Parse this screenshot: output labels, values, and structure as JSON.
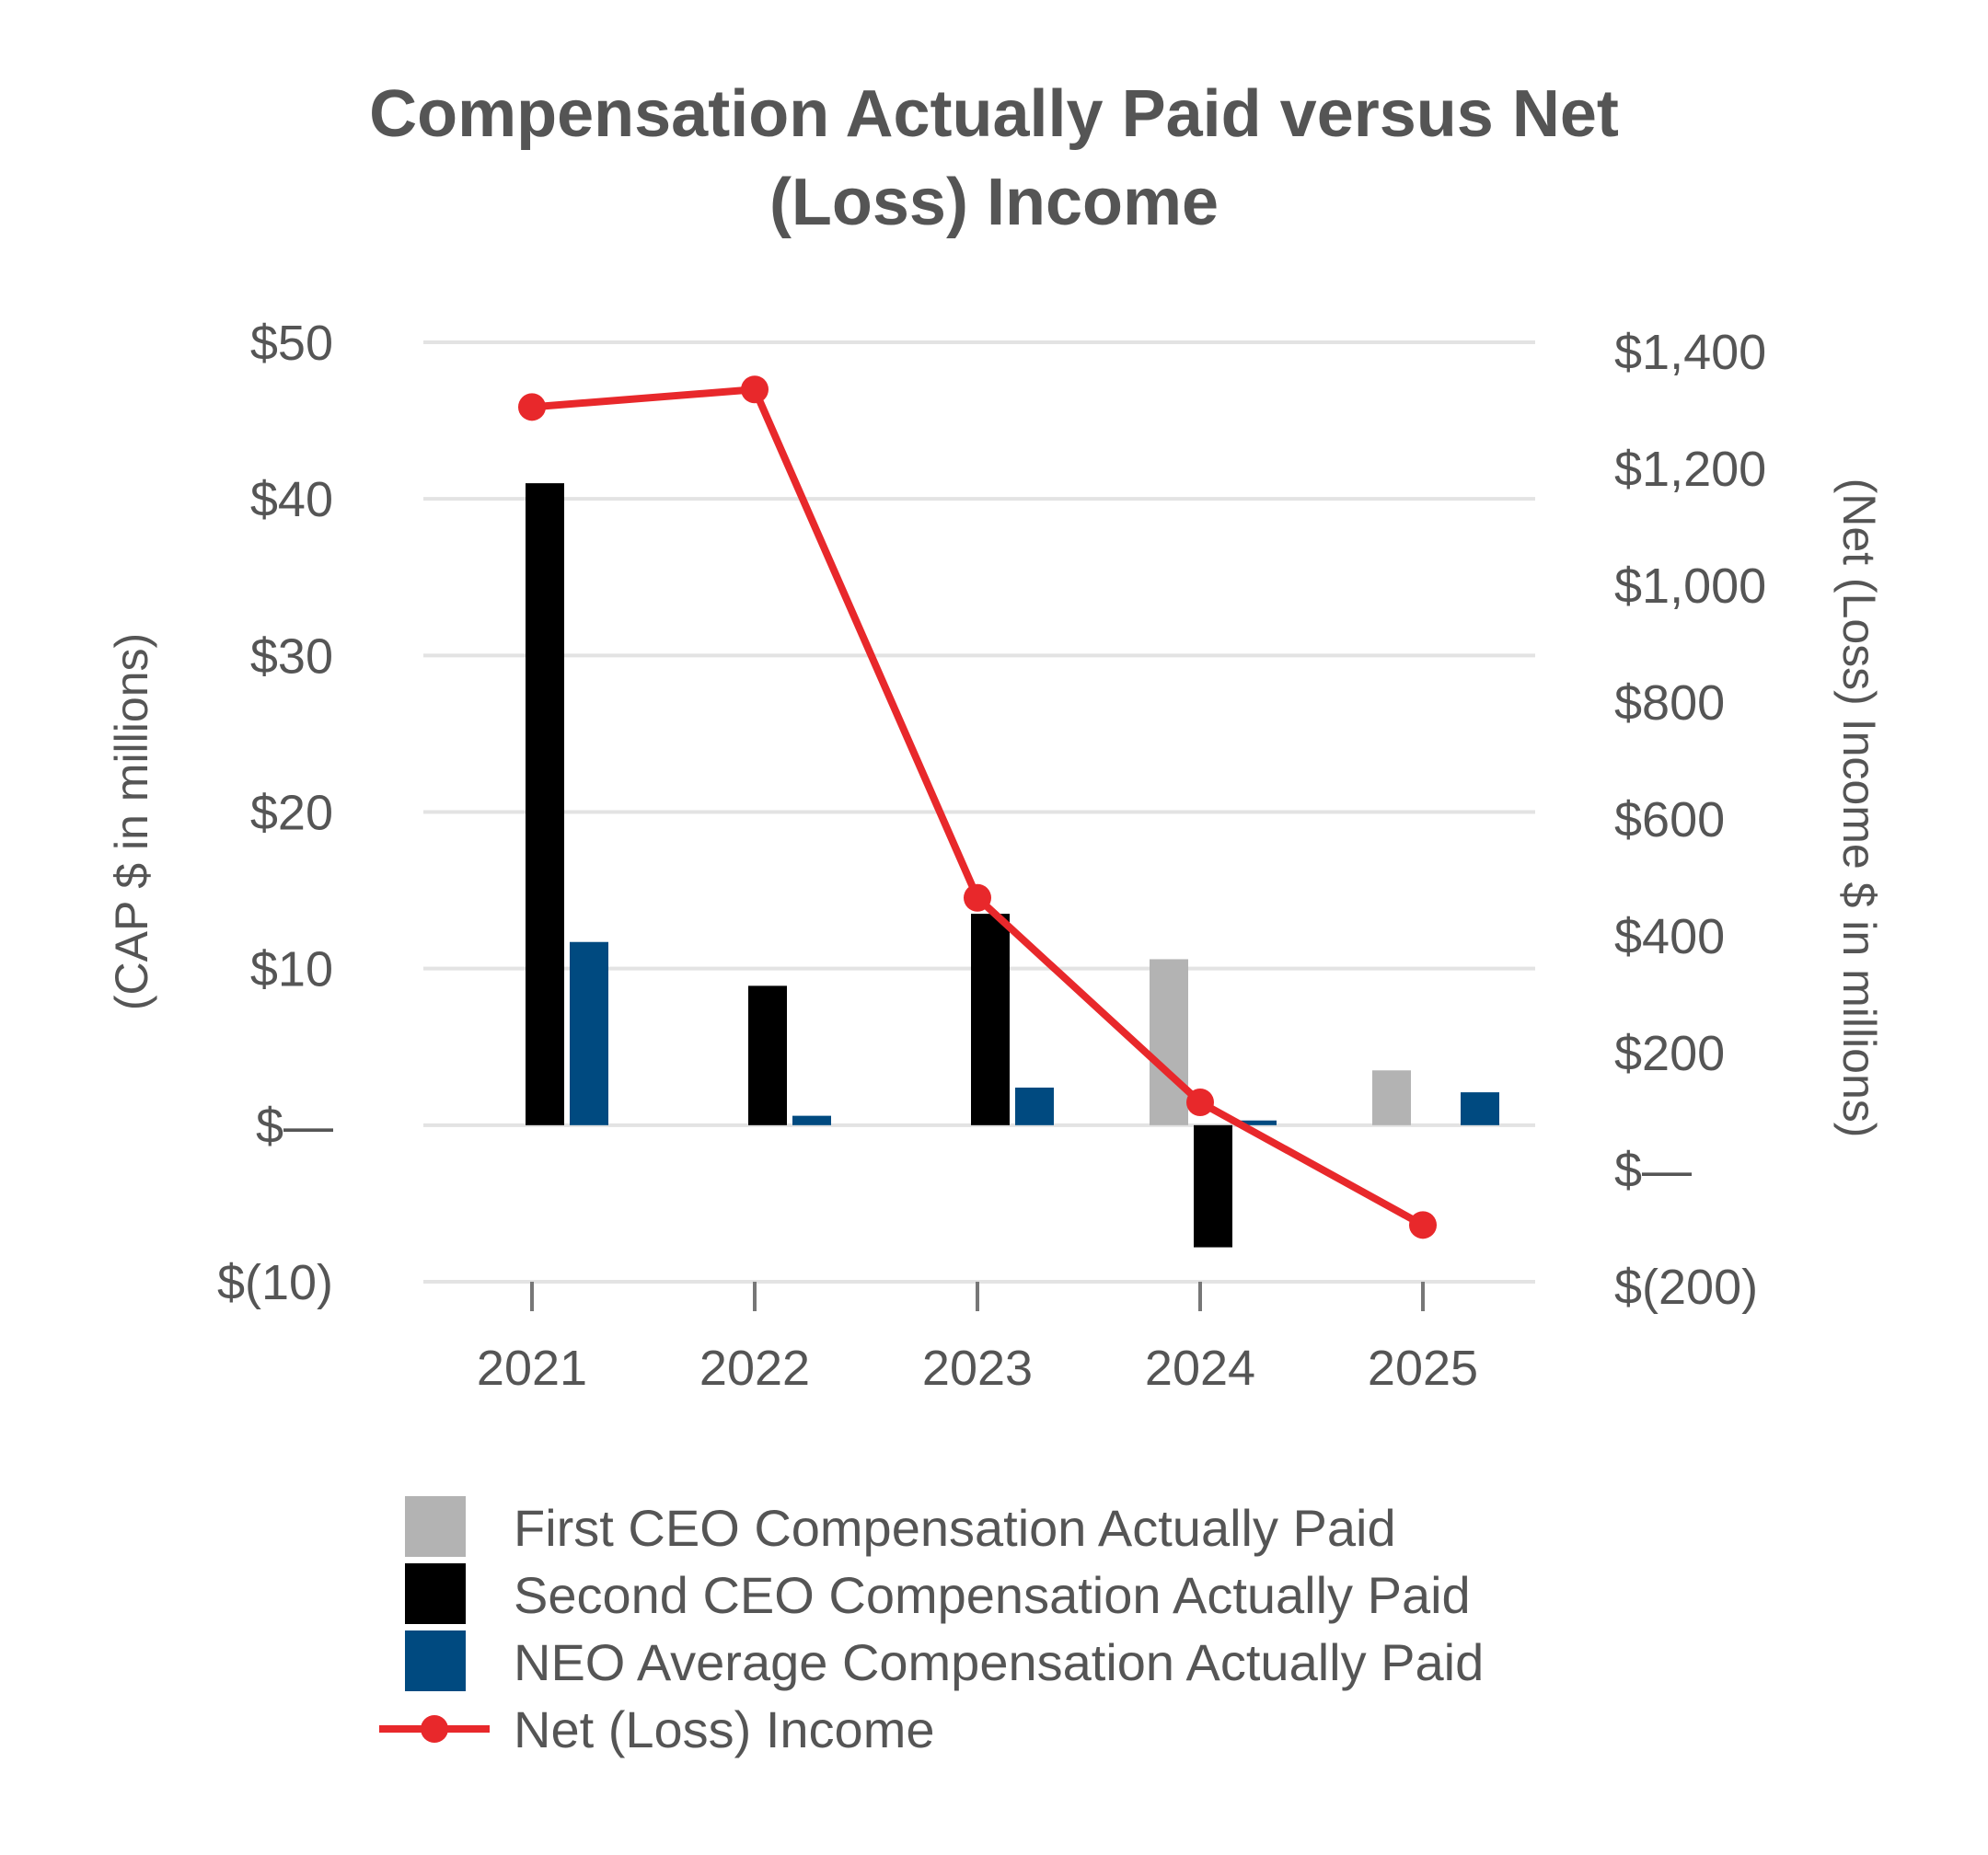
{
  "chart_data": {
    "type": "bar",
    "title_lines": [
      "Compensation Actually Paid versus Net",
      "(Loss) Income"
    ],
    "categories": [
      "2021",
      "2022",
      "2023",
      "2024",
      "2025"
    ],
    "ylabel_left": "(CAP $ in millions)",
    "ylabel_right": "(Net (Loss) Income $ in millions)",
    "ylim_left": [
      -10,
      50
    ],
    "ylim_right": [
      -200,
      1400
    ],
    "yticks_left": [
      -10,
      0,
      10,
      20,
      30,
      40,
      50
    ],
    "yticks_left_labels": [
      "$(10)",
      "$—",
      "$10",
      "$20",
      "$30",
      "$40",
      "$50"
    ],
    "yticks_right": [
      -200,
      0,
      200,
      400,
      600,
      800,
      1000,
      1200,
      1400
    ],
    "yticks_right_labels": [
      "$(200)",
      "$—",
      "$200",
      "$400",
      "$600",
      "$800",
      "$1,000",
      "$1,200",
      "$1,400"
    ],
    "grid": true,
    "legend_position": "bottom",
    "series": [
      {
        "name": "First CEO Compensation Actually Paid",
        "kind": "bar",
        "axis": "left",
        "color": "#b3b3b3",
        "values": [
          null,
          null,
          null,
          10.6,
          3.5
        ]
      },
      {
        "name": "Second CEO Compensation Actually Paid",
        "kind": "bar",
        "axis": "left",
        "color": "#000000",
        "values": [
          41.0,
          8.9,
          13.5,
          -7.8,
          null
        ]
      },
      {
        "name": "NEO Average Compensation Actually Paid",
        "kind": "bar",
        "axis": "left",
        "color": "#004a80",
        "values": [
          11.7,
          0.6,
          2.4,
          0.3,
          2.1
        ]
      },
      {
        "name": "Net (Loss) Income",
        "kind": "line",
        "axis": "right",
        "color": "#e8282b",
        "values": [
          1305,
          1335,
          465,
          115,
          -95
        ]
      }
    ]
  }
}
